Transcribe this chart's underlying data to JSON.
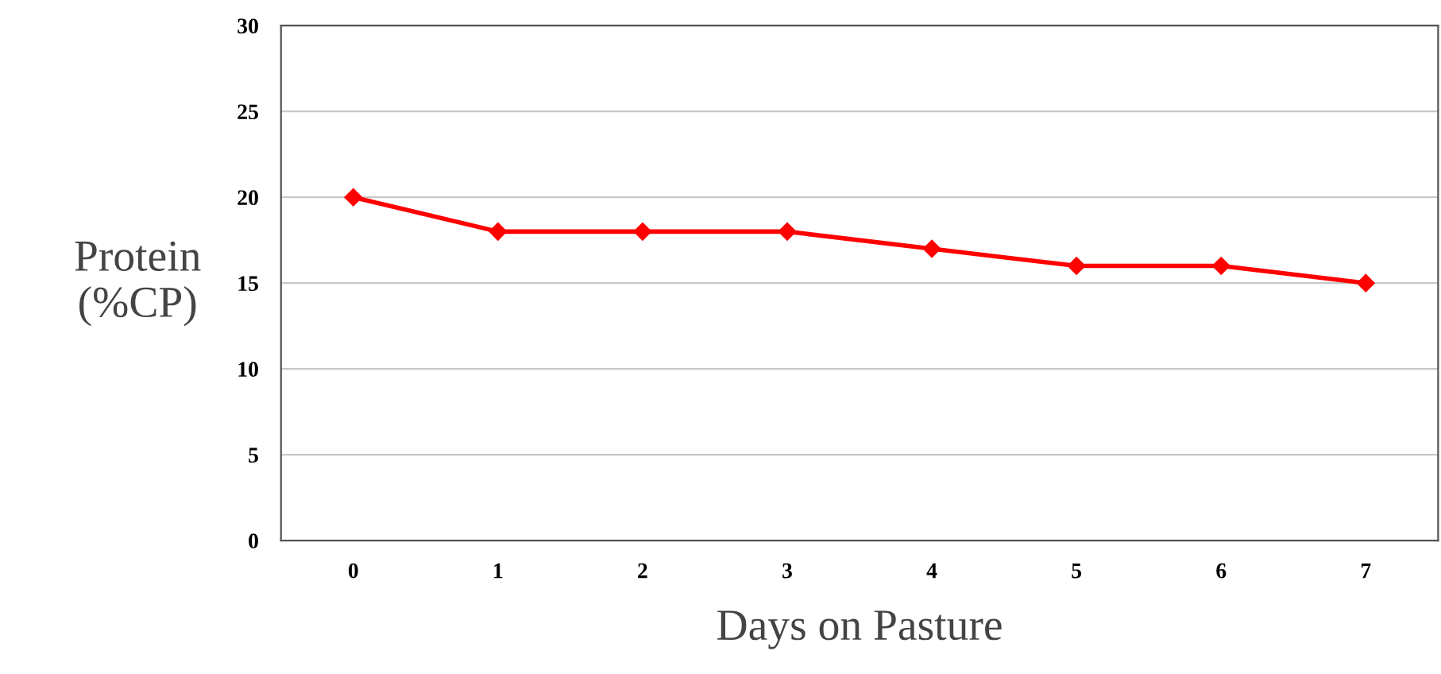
{
  "chart_data": {
    "type": "line",
    "xlabel": "Days on Pasture",
    "ylabel": "Protein\n(%CP)",
    "categories": [
      "0",
      "1",
      "2",
      "3",
      "4",
      "5",
      "6",
      "7"
    ],
    "series": [
      {
        "color": "#ff0000",
        "values": [
          20,
          18,
          18,
          18,
          17,
          16,
          16,
          15
        ]
      }
    ],
    "ylim": [
      0,
      30
    ],
    "yticks": [
      0,
      5,
      10,
      15,
      20,
      25,
      30
    ],
    "grid": "y",
    "marker": "diamond",
    "line_style": "solid",
    "legend": false
  }
}
